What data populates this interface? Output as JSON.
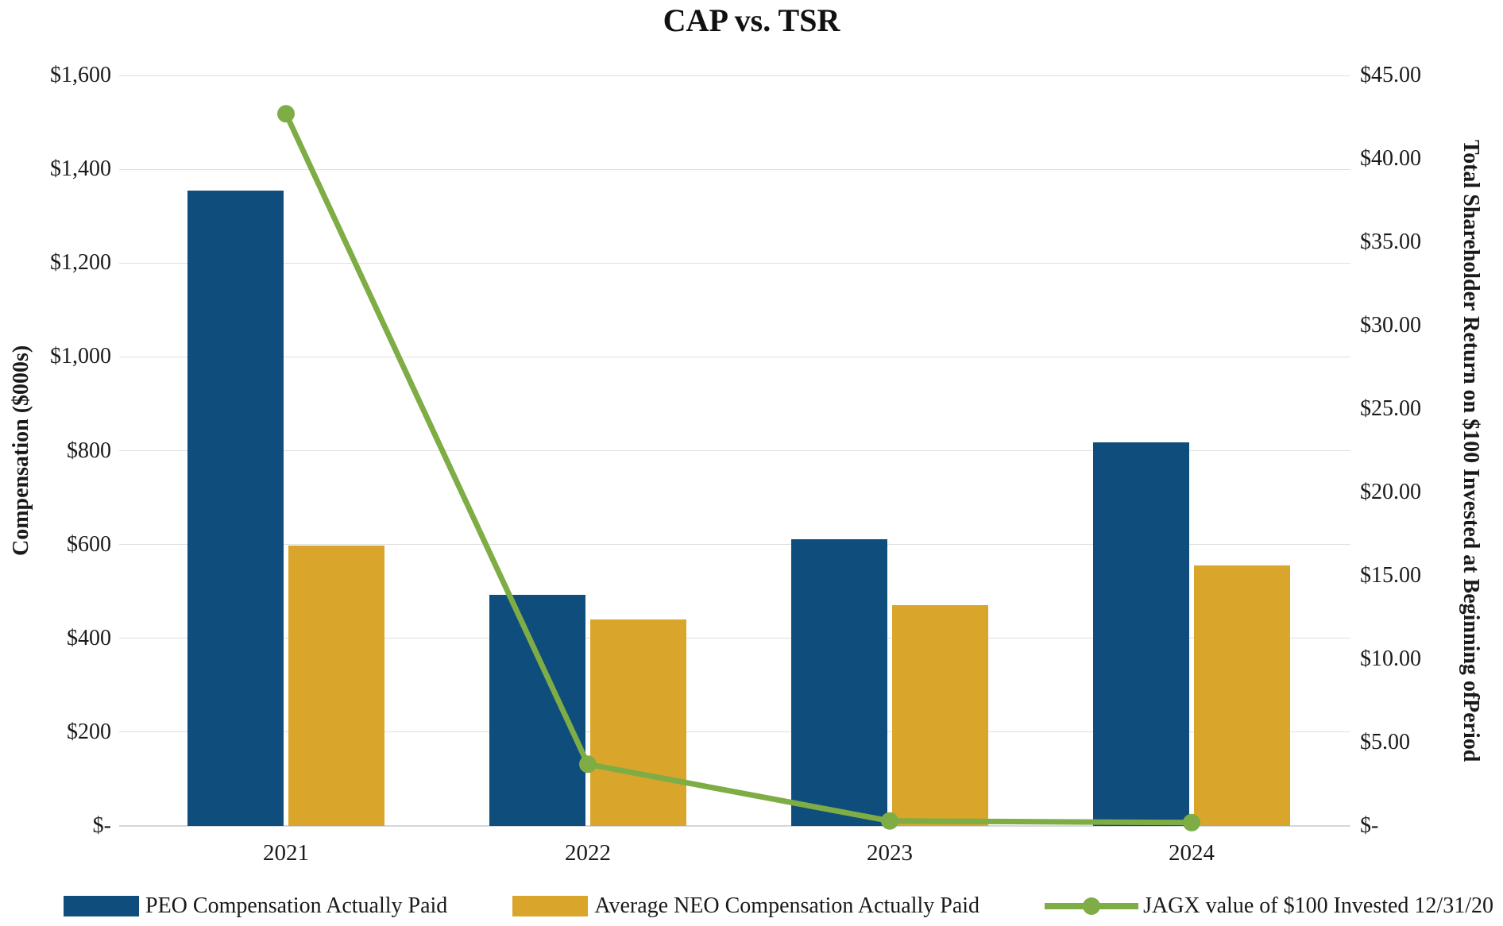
{
  "chart_data": {
    "type": "combo-bar-line",
    "title": "CAP vs. TSR",
    "categories": [
      "2021",
      "2022",
      "2023",
      "2024"
    ],
    "series": [
      {
        "name": "PEO Compensation Actually Paid",
        "type": "bar",
        "axis": "left",
        "color": "#0F4E7C",
        "values": [
          1355,
          493,
          612,
          817
        ]
      },
      {
        "name": "Average NEO Compensation Actually Paid",
        "type": "bar",
        "axis": "left",
        "color": "#D9A62B",
        "values": [
          597,
          441,
          470,
          555
        ]
      },
      {
        "name": "JAGX value of $100 Invested 12/31/20",
        "type": "line",
        "axis": "right",
        "color": "#7EAC45",
        "values": [
          42.7,
          3.7,
          0.3,
          0.2
        ]
      }
    ],
    "left_axis": {
      "title": "Compensation ($000s)",
      "ticks": [
        "$1,600",
        "$1,400",
        "$1,200",
        "$1,000",
        "$800",
        "$600",
        "$400",
        "$200",
        "$-"
      ],
      "range": [
        0,
        1600
      ],
      "step": 200
    },
    "right_axis": {
      "title_lines": [
        "Total Shareholder Return on $100 Invested at Beginning of",
        "Period"
      ],
      "ticks": [
        "$45.00",
        "$40.00",
        "$35.00",
        "$30.00",
        "$25.00",
        "$20.00",
        "$15.00",
        "$10.00",
        "$5.00",
        "$-"
      ],
      "range": [
        0,
        45
      ],
      "step": 5
    },
    "grid": true,
    "legend_position": "bottom"
  },
  "colors": {
    "peo_bar": "#0F4E7C",
    "neo_bar": "#D9A62B",
    "tsr_line": "#7EAC45",
    "gridline": "#E0E0E0",
    "axis_line": "#D2D8DD",
    "text": "#1A1A1A",
    "background": "#FFFFFF"
  }
}
